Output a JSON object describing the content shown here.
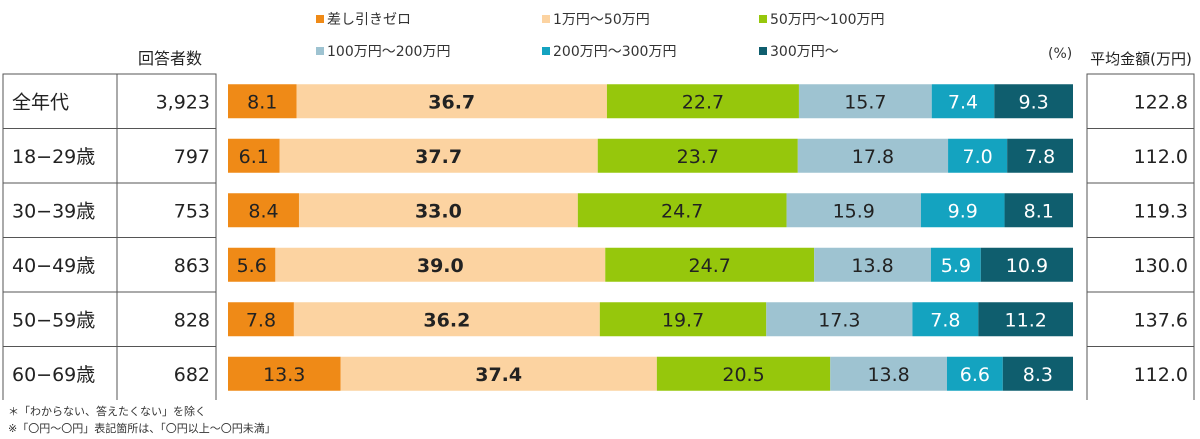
{
  "chart_data": {
    "type": "bar",
    "stacked": true,
    "orientation": "horizontal",
    "unit_label": "(%)",
    "count_header": "回答者数",
    "avg_header": "平均金額(万円)",
    "categories": [
      "全年代",
      "18−29歳",
      "30−39歳",
      "40−49歳",
      "50−59歳",
      "60−69歳"
    ],
    "respondents": [
      "3,923",
      "797",
      "753",
      "863",
      "828",
      "682"
    ],
    "averages": [
      "122.8",
      "112.0",
      "119.3",
      "130.0",
      "137.6",
      "112.0"
    ],
    "series": [
      {
        "name": "差し引きゼロ",
        "color": "#ef8a17",
        "values": [
          8.1,
          6.1,
          8.4,
          5.6,
          7.8,
          13.3
        ]
      },
      {
        "name": "1万円〜50万円",
        "color": "#fcd3a1",
        "values": [
          36.7,
          37.7,
          33.0,
          39.0,
          36.2,
          37.4
        ]
      },
      {
        "name": "50万円〜100万円",
        "color": "#96c70c",
        "values": [
          22.7,
          23.7,
          24.7,
          24.7,
          19.7,
          20.5
        ]
      },
      {
        "name": "100万円〜200万円",
        "color": "#9ec3d1",
        "values": [
          15.7,
          17.8,
          15.9,
          13.8,
          17.3,
          13.8
        ]
      },
      {
        "name": "200万円〜300万円",
        "color": "#14a3c0",
        "values": [
          7.4,
          7.0,
          9.9,
          5.9,
          7.8,
          6.6
        ]
      },
      {
        "name": "300万円〜",
        "color": "#0f5e6e",
        "values": [
          9.3,
          7.8,
          8.1,
          10.9,
          11.2,
          8.3
        ]
      }
    ],
    "footnotes": [
      "＊「わからない、答えたくない」を除く",
      "※「〇円〜〇円」表記箇所は、「〇円以上〜〇円未満」"
    ]
  }
}
